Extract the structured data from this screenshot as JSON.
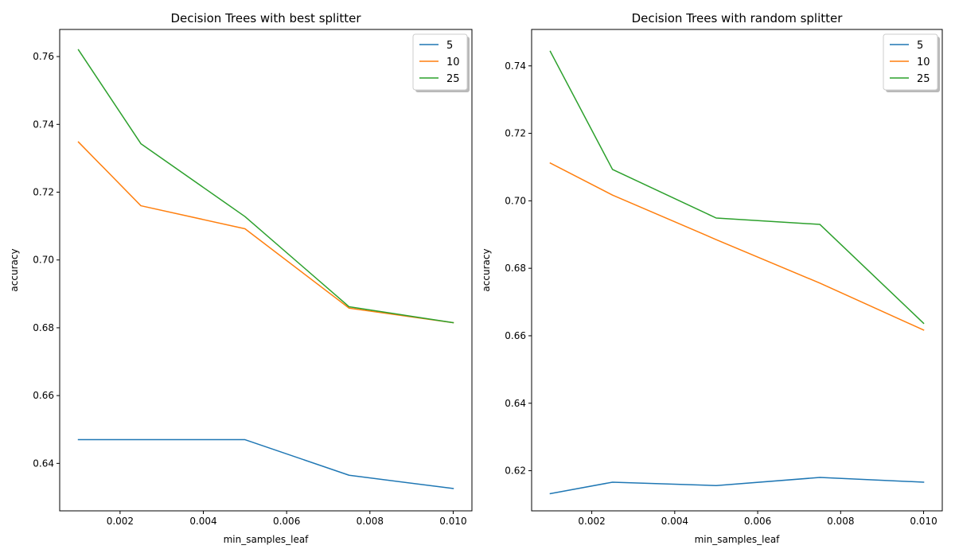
{
  "figure": {
    "background": "#ffffff"
  },
  "chart_data": [
    {
      "type": "line",
      "title": "Decision Trees with best splitter",
      "xlabel": "min_samples_leaf",
      "ylabel": "accuracy",
      "x": [
        0.001,
        0.0025,
        0.005,
        0.0075,
        0.01
      ],
      "xlim": [
        0.00055,
        0.01045
      ],
      "ylim": [
        0.626,
        0.768
      ],
      "xticks": [
        0.002,
        0.004,
        0.006,
        0.008,
        0.01
      ],
      "xtick_labels": [
        "0.002",
        "0.004",
        "0.006",
        "0.008",
        "0.010"
      ],
      "yticks": [
        0.64,
        0.66,
        0.68,
        0.7,
        0.72,
        0.74,
        0.76
      ],
      "ytick_labels": [
        "0.64",
        "0.66",
        "0.68",
        "0.70",
        "0.72",
        "0.74",
        "0.76"
      ],
      "grid": false,
      "legend_position": "top-right",
      "series": [
        {
          "name": "5",
          "color": "#1f77b4",
          "values": [
            0.647,
            0.647,
            0.647,
            0.6365,
            0.6326
          ]
        },
        {
          "name": "10",
          "color": "#ff7f0e",
          "values": [
            0.7348,
            0.716,
            0.7092,
            0.6858,
            0.6815
          ]
        },
        {
          "name": "25",
          "color": "#2ca02c",
          "values": [
            0.762,
            0.7343,
            0.7128,
            0.6862,
            0.6815
          ]
        }
      ]
    },
    {
      "type": "line",
      "title": "Decision Trees with random splitter",
      "xlabel": "min_samples_leaf",
      "ylabel": "accuracy",
      "x": [
        0.001,
        0.0025,
        0.005,
        0.0075,
        0.01
      ],
      "xlim": [
        0.00055,
        0.01045
      ],
      "ylim": [
        0.6081,
        0.7508
      ],
      "xticks": [
        0.002,
        0.004,
        0.006,
        0.008,
        0.01
      ],
      "xtick_labels": [
        "0.002",
        "0.004",
        "0.006",
        "0.008",
        "0.010"
      ],
      "yticks": [
        0.62,
        0.64,
        0.66,
        0.68,
        0.7,
        0.72,
        0.74
      ],
      "ytick_labels": [
        "0.62",
        "0.64",
        "0.66",
        "0.68",
        "0.70",
        "0.72",
        "0.74"
      ],
      "grid": false,
      "legend_position": "top-right",
      "series": [
        {
          "name": "5",
          "color": "#1f77b4",
          "values": [
            0.6132,
            0.6166,
            0.6156,
            0.618,
            0.6166
          ]
        },
        {
          "name": "10",
          "color": "#ff7f0e",
          "values": [
            0.7112,
            0.7017,
            0.6885,
            0.6756,
            0.6617
          ]
        },
        {
          "name": "25",
          "color": "#2ca02c",
          "values": [
            0.7443,
            0.7093,
            0.6949,
            0.693,
            0.6637
          ]
        }
      ]
    }
  ]
}
